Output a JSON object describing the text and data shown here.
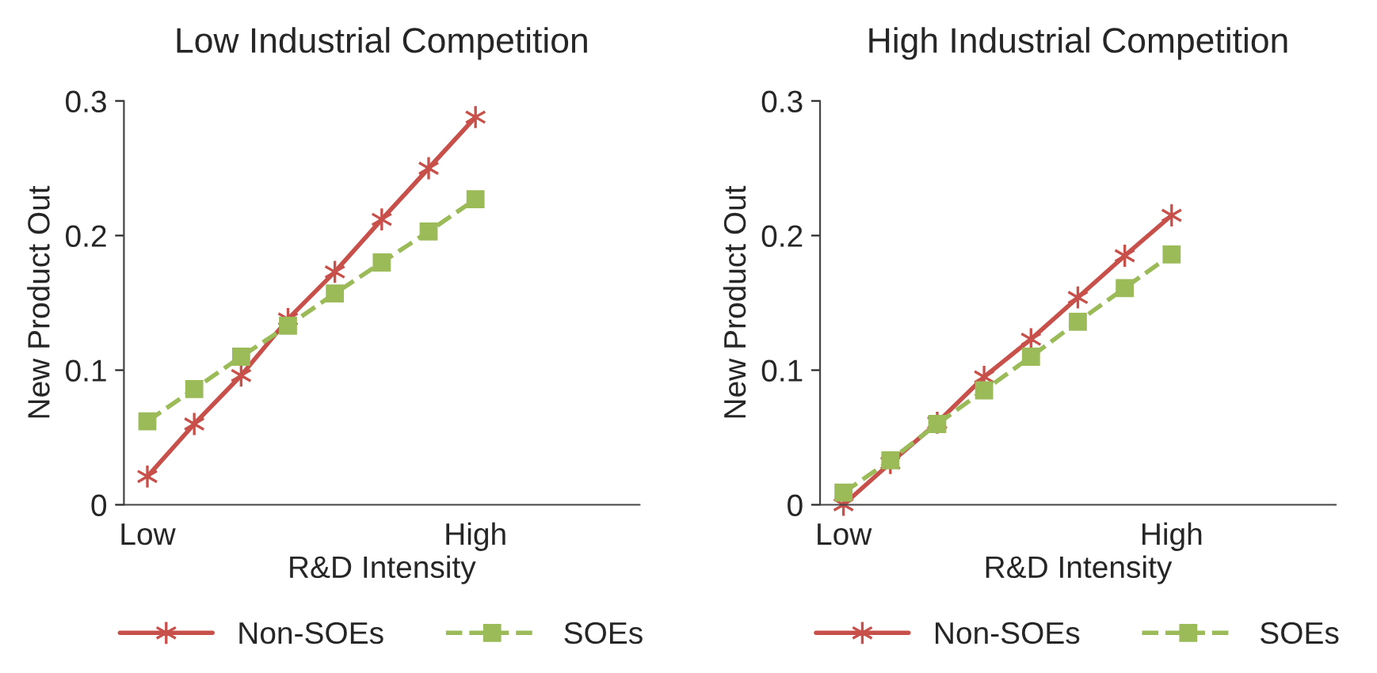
{
  "chart_data": [
    {
      "type": "line",
      "title": "Low Industrial Competition",
      "xlabel": "R&D Intensity",
      "ylabel": "New Product Out",
      "categories": [
        "Low",
        null,
        null,
        null,
        null,
        null,
        null,
        "High"
      ],
      "series": [
        {
          "name": "Non-SOEs",
          "color": "#c8504b",
          "marker": "cross",
          "line_style": "solid",
          "values": [
            0.021,
            0.06,
            0.096,
            0.138,
            0.173,
            0.212,
            0.25,
            0.288
          ]
        },
        {
          "name": "SOEs",
          "color": "#9bbb59",
          "marker": "square",
          "line_style": "dashed",
          "values": [
            0.062,
            0.086,
            0.11,
            0.133,
            0.157,
            0.18,
            0.203,
            0.227
          ]
        }
      ],
      "ylim": [
        0,
        0.3
      ],
      "yticks": [
        0,
        0.1,
        0.2,
        0.3
      ],
      "grid": false,
      "legend": "bottom"
    },
    {
      "type": "line",
      "title": "High Industrial Competition",
      "xlabel": "R&D Intensity",
      "ylabel": "New Product Out",
      "categories": [
        "Low",
        null,
        null,
        null,
        null,
        null,
        null,
        "High"
      ],
      "series": [
        {
          "name": "Non-SOEs",
          "color": "#c8504b",
          "marker": "cross",
          "line_style": "solid",
          "values": [
            0.0,
            0.031,
            0.061,
            0.095,
            0.123,
            0.154,
            0.185,
            0.215
          ]
        },
        {
          "name": "SOEs",
          "color": "#9bbb59",
          "marker": "square",
          "line_style": "dashed",
          "values": [
            0.009,
            0.033,
            0.06,
            0.085,
            0.11,
            0.136,
            0.161,
            0.186
          ]
        }
      ],
      "ylim": [
        0,
        0.3
      ],
      "yticks": [
        0,
        0.1,
        0.2,
        0.3
      ],
      "grid": false,
      "legend": "bottom"
    }
  ]
}
